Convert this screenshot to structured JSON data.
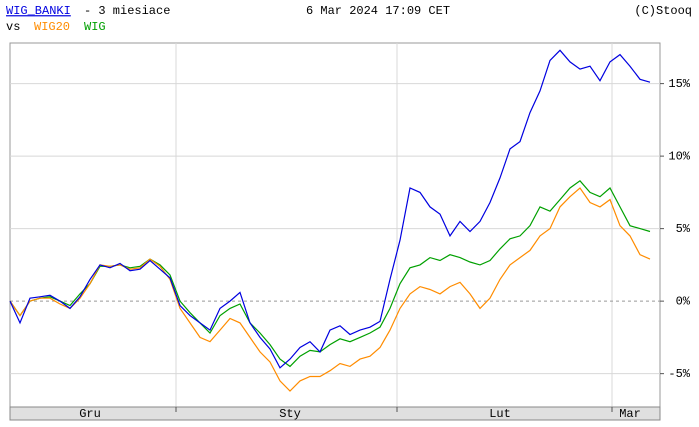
{
  "chart_data": {
    "type": "line",
    "subtitle": "- 3 miesiace",
    "timestamp": "6 Mar 2024 17:09 CET",
    "source": "(C)Stooq",
    "compare_label": "vs",
    "categories": [
      null,
      null,
      null,
      null,
      null,
      null,
      null,
      null,
      "Gru",
      null,
      null,
      null,
      null,
      null,
      null,
      null,
      null,
      null,
      null,
      null,
      null,
      null,
      null,
      null,
      null,
      null,
      null,
      null,
      "Sty",
      null,
      null,
      null,
      null,
      null,
      null,
      null,
      null,
      null,
      null,
      null,
      null,
      null,
      null,
      null,
      null,
      null,
      null,
      null,
      null,
      "Lut",
      null,
      null,
      null,
      null,
      null,
      null,
      null,
      null,
      null,
      null,
      null,
      null,
      "Mar",
      null,
      null
    ],
    "series": [
      {
        "name": "WIG_BANKI",
        "color": "#0000e0",
        "values": [
          0,
          -1.5,
          0.2,
          0.3,
          0.4,
          0,
          -0.5,
          0.3,
          1.5,
          2.5,
          2.3,
          2.6,
          2.1,
          2.2,
          2.8,
          2.2,
          1.6,
          -0.3,
          -1,
          -1.5,
          -2,
          -0.5,
          0,
          0.6,
          -1.5,
          -2.5,
          -3.3,
          -4.6,
          -4,
          -3.2,
          -2.8,
          -3.5,
          -2,
          -1.7,
          -2.3,
          -2,
          -1.8,
          -1.4,
          1.5,
          4.2,
          7.8,
          7.5,
          6.5,
          6,
          4.5,
          5.5,
          4.8,
          5.5,
          6.8,
          8.5,
          10.5,
          11,
          13,
          14.5,
          16.6,
          17.3,
          16.5,
          16,
          16.2,
          15.2,
          16.5,
          17,
          16.2,
          15.3,
          15.1
        ]
      },
      {
        "name": "WIG20",
        "color": "#ff8c00",
        "values": [
          0,
          -1,
          0,
          0.2,
          0.2,
          -0.2,
          -0.5,
          0.2,
          1.2,
          2.5,
          2.4,
          2.5,
          2.2,
          2.3,
          2.9,
          2.4,
          1.5,
          -0.5,
          -1.5,
          -2.5,
          -2.8,
          -2,
          -1.2,
          -1.5,
          -2.5,
          -3.5,
          -4.2,
          -5.5,
          -6.2,
          -5.5,
          -5.2,
          -5.2,
          -4.8,
          -4.3,
          -4.5,
          -4,
          -3.8,
          -3.2,
          -2,
          -0.5,
          0.5,
          1,
          0.8,
          0.5,
          1,
          1.3,
          0.5,
          -0.5,
          0.2,
          1.5,
          2.5,
          3,
          3.5,
          4.5,
          5,
          6.5,
          7.2,
          7.8,
          6.8,
          6.5,
          7,
          5.2,
          4.5,
          3.2,
          2.9
        ]
      },
      {
        "name": "WIG",
        "color": "#00a000",
        "values": [
          0,
          -1,
          0,
          0.2,
          0.3,
          0,
          -0.3,
          0.5,
          1.2,
          2.4,
          2.4,
          2.5,
          2.3,
          2.4,
          2.9,
          2.5,
          1.8,
          0,
          -0.8,
          -1.5,
          -2.2,
          -1,
          -0.5,
          -0.2,
          -1.5,
          -2.2,
          -3,
          -4,
          -4.5,
          -3.8,
          -3.4,
          -3.5,
          -3,
          -2.6,
          -2.8,
          -2.5,
          -2.2,
          -1.8,
          -0.5,
          1.2,
          2.3,
          2.5,
          3,
          2.8,
          3.2,
          3,
          2.7,
          2.5,
          2.8,
          3.6,
          4.3,
          4.5,
          5.2,
          6.5,
          6.2,
          7,
          7.8,
          8.3,
          7.5,
          7.2,
          7.8,
          6.5,
          5.2,
          5,
          4.8
        ]
      }
    ],
    "ylim": [
      -7.3,
      17.8
    ],
    "yticks": [
      {
        "value": -5,
        "label": "-5%"
      },
      {
        "value": 0,
        "label": "0%"
      },
      {
        "value": 5,
        "label": "5%"
      },
      {
        "value": 10,
        "label": "10%"
      },
      {
        "value": 15,
        "label": "15%"
      }
    ],
    "grid": true
  }
}
